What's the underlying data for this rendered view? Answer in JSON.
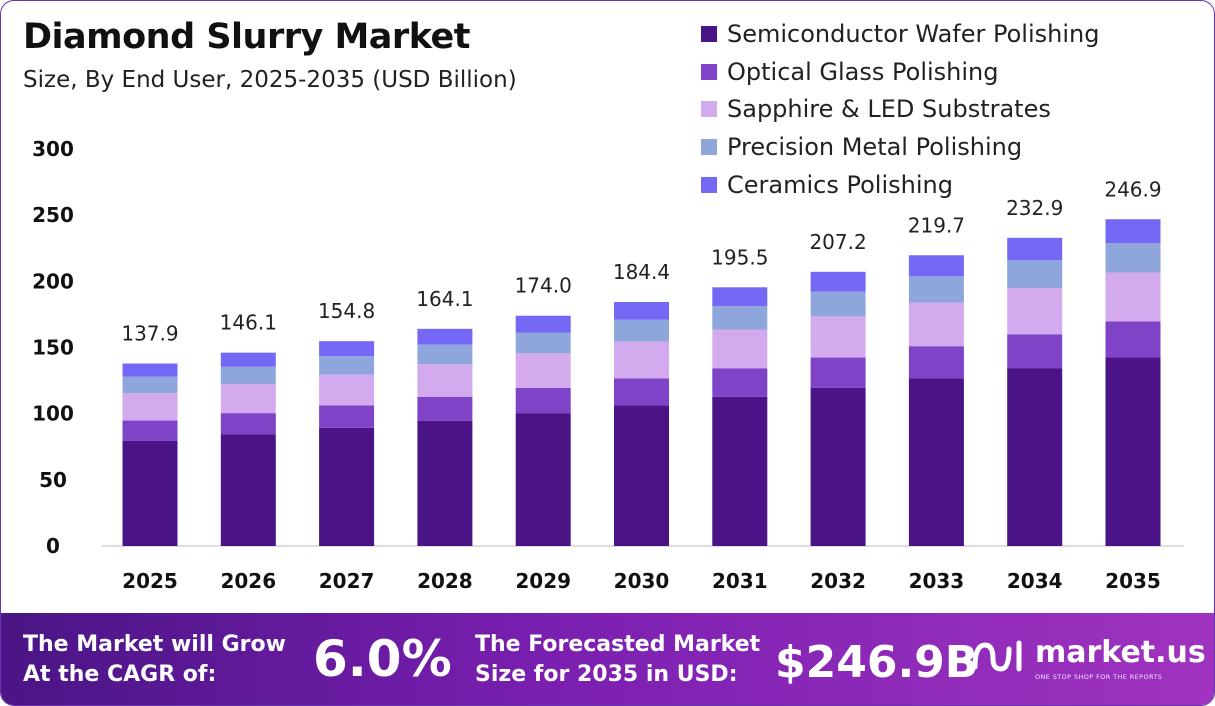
{
  "title": "Diamond Slurry Market",
  "subtitle": "Size, By End User, 2025-2035 (USD Billion)",
  "chart_data": {
    "type": "bar",
    "stacked": true,
    "categories": [
      "2025",
      "2026",
      "2027",
      "2028",
      "2029",
      "2030",
      "2031",
      "2032",
      "2033",
      "2034",
      "2035"
    ],
    "totals_labels": [
      "137.9",
      "146.1",
      "154.8",
      "164.1",
      "174.0",
      "184.4",
      "195.5",
      "207.2",
      "219.7",
      "232.9",
      "246.9"
    ],
    "series": [
      {
        "name": "Semiconductor Wafer Polishing",
        "color": "#4a1486",
        "values": [
          79.6,
          84.3,
          89.3,
          94.7,
          100.4,
          106.4,
          112.8,
          119.6,
          126.8,
          134.4,
          142.5
        ]
      },
      {
        "name": "Optical Glass Polishing",
        "color": "#7f43c8",
        "values": [
          15.2,
          16.1,
          17.0,
          18.1,
          19.1,
          20.3,
          21.5,
          22.8,
          24.2,
          25.6,
          27.2
        ]
      },
      {
        "name": "Sapphire & LED Substrates",
        "color": "#d3aaee",
        "values": [
          20.7,
          21.9,
          23.2,
          24.6,
          26.1,
          27.7,
          29.3,
          31.1,
          33.0,
          34.9,
          37.0
        ]
      },
      {
        "name": "Precision Metal Polishing",
        "color": "#8fa6dc",
        "values": [
          12.4,
          13.1,
          13.9,
          14.8,
          15.7,
          16.6,
          17.6,
          18.6,
          19.8,
          21.0,
          22.2
        ]
      },
      {
        "name": "Ceramics Polishing",
        "color": "#7468f4",
        "values": [
          10.0,
          10.7,
          11.4,
          11.9,
          12.7,
          13.4,
          14.3,
          15.1,
          15.9,
          17.0,
          18.0
        ]
      }
    ],
    "ylim": [
      0,
      300
    ],
    "yticks": [
      0,
      50,
      100,
      150,
      200,
      250,
      300
    ],
    "grid": false,
    "legend": "top-right"
  },
  "footer": {
    "cagr_label": "The Market will Grow At the CAGR of:",
    "cagr_value": "6.0%",
    "forecast_label": "The Forecasted Market Size for 2035 in USD:",
    "forecast_value": "$246.9B",
    "brand_name": "market.us",
    "brand_tagline": "ONE STOP SHOP FOR THE REPORTS"
  }
}
